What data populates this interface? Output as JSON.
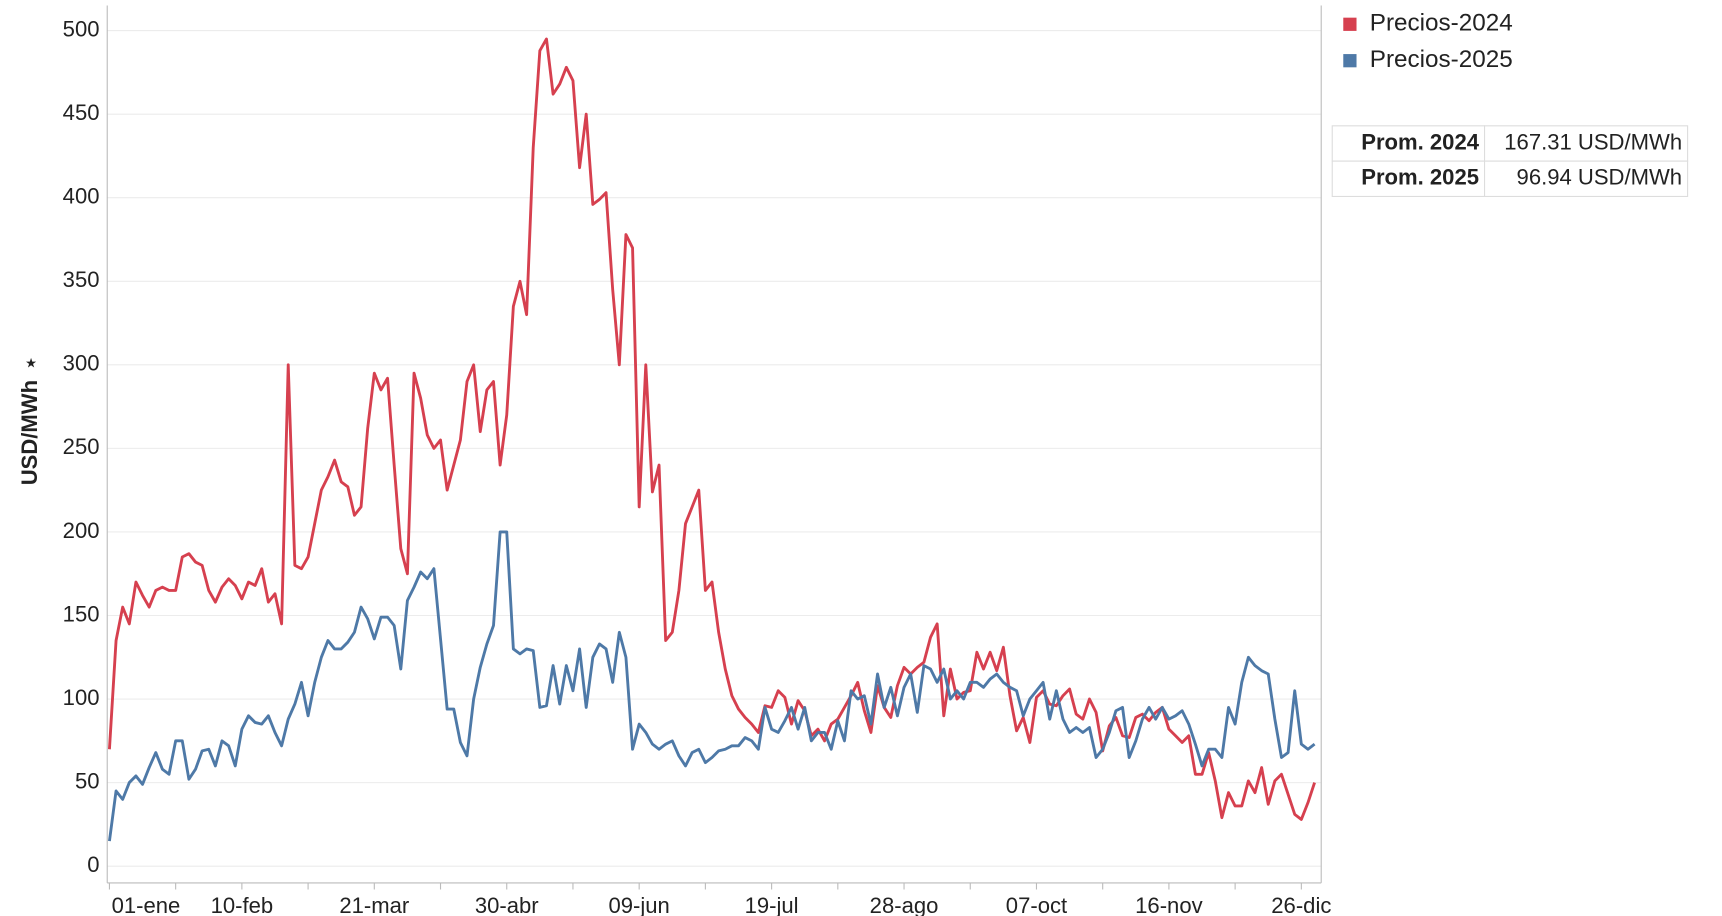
{
  "chart_data": {
    "type": "line",
    "y_label": "USD/MWh",
    "categories": [
      "01-ene",
      null,
      null,
      null,
      null,
      null,
      null,
      null,
      null,
      null,
      null,
      null,
      null,
      null,
      null,
      null,
      null,
      null,
      null,
      null,
      "10-feb",
      null,
      null,
      null,
      null,
      null,
      null,
      null,
      null,
      null,
      null,
      null,
      null,
      null,
      null,
      null,
      null,
      null,
      null,
      null,
      "21-mar",
      null,
      null,
      null,
      null,
      null,
      null,
      null,
      null,
      null,
      null,
      null,
      null,
      null,
      null,
      null,
      null,
      null,
      null,
      null,
      "30-abr",
      null,
      null,
      null,
      null,
      null,
      null,
      null,
      null,
      null,
      null,
      null,
      null,
      null,
      null,
      null,
      null,
      null,
      null,
      null,
      "09-jun",
      null,
      null,
      null,
      null,
      null,
      null,
      null,
      null,
      null,
      null,
      null,
      null,
      null,
      null,
      null,
      null,
      null,
      null,
      null,
      "19-jul",
      null,
      null,
      null,
      null,
      null,
      null,
      null,
      null,
      null,
      null,
      null,
      null,
      null,
      null,
      null,
      null,
      null,
      null,
      null,
      "28-ago",
      null,
      null,
      null,
      null,
      null,
      null,
      null,
      null,
      null,
      null,
      null,
      null,
      null,
      null,
      null,
      null,
      null,
      null,
      null,
      "07-oct",
      null,
      null,
      null,
      null,
      null,
      null,
      null,
      null,
      null,
      null,
      null,
      null,
      null,
      null,
      null,
      null,
      null,
      null,
      null,
      "16-nov",
      null,
      null,
      null,
      null,
      null,
      null,
      null,
      null,
      null,
      null,
      null,
      null,
      null,
      null,
      null,
      null,
      null,
      null,
      null,
      "26-dic",
      null,
      null
    ],
    "series": [
      {
        "name": "Precios-2024",
        "color": "#d6404f",
        "values": [
          70,
          135,
          155,
          145,
          170,
          162,
          155,
          165,
          167,
          165,
          165,
          185,
          187,
          182,
          180,
          165,
          158,
          167,
          172,
          168,
          160,
          170,
          168,
          178,
          158,
          163,
          145,
          300,
          180,
          178,
          185,
          205,
          225,
          233,
          243,
          230,
          227,
          210,
          215,
          262,
          295,
          285,
          292,
          240,
          190,
          175,
          295,
          280,
          258,
          250,
          255,
          225,
          240,
          255,
          290,
          300,
          260,
          285,
          290,
          240,
          270,
          335,
          350,
          330,
          430,
          488,
          495,
          462,
          468,
          478,
          470,
          418,
          450,
          396,
          399,
          403,
          345,
          300,
          378,
          370,
          215,
          300,
          224,
          240,
          135,
          140,
          165,
          205,
          215,
          225,
          165,
          170,
          140,
          118,
          102,
          94,
          89,
          85,
          80,
          96,
          95,
          105,
          101,
          85,
          99,
          93,
          78,
          82,
          75,
          85,
          88,
          95,
          102,
          110,
          93,
          80,
          108,
          95,
          89,
          108,
          119,
          115,
          119,
          122,
          137,
          145,
          90,
          118,
          100,
          104,
          105,
          128,
          118,
          128,
          117,
          131,
          102,
          81,
          89,
          74,
          101,
          105,
          97,
          96,
          102,
          106,
          91,
          88,
          100,
          92,
          69,
          84,
          89,
          78,
          77,
          89,
          91,
          87,
          92,
          95,
          82,
          78,
          74,
          78,
          55,
          55,
          68,
          51,
          29,
          44,
          36,
          36,
          51,
          44,
          59,
          37,
          51,
          55,
          43,
          31,
          28,
          38,
          50
        ]
      },
      {
        "name": "Precios-2025",
        "color": "#4e79a7",
        "values": [
          15,
          45,
          40,
          50,
          54,
          49,
          59,
          68,
          58,
          55,
          75,
          75,
          52,
          58,
          69,
          70,
          60,
          75,
          72,
          60,
          82,
          90,
          86,
          85,
          90,
          80,
          72,
          88,
          97,
          110,
          90,
          110,
          125,
          135,
          130,
          130,
          134,
          140,
          155,
          148,
          136,
          149,
          149,
          144,
          118,
          159,
          167,
          176,
          172,
          178,
          136,
          94,
          94,
          74,
          66,
          100,
          119,
          133,
          144,
          200,
          200,
          130,
          127,
          130,
          129,
          95,
          96,
          120,
          97,
          120,
          105,
          130,
          95,
          125,
          133,
          130,
          110,
          140,
          125,
          70,
          85,
          80,
          73,
          70,
          73,
          75,
          66,
          60,
          68,
          70,
          62,
          65,
          69,
          70,
          72,
          72,
          77,
          75,
          70,
          95,
          82,
          80,
          87,
          95,
          82,
          95,
          75,
          80,
          80,
          70,
          87,
          75,
          105,
          100,
          102,
          85,
          115,
          95,
          107,
          90,
          107,
          115,
          92,
          120,
          118,
          110,
          118,
          100,
          105,
          100,
          110,
          110,
          107,
          112,
          115,
          110,
          107,
          105,
          90,
          100,
          105,
          110,
          88,
          105,
          88,
          80,
          83,
          80,
          83,
          65,
          70,
          80,
          93,
          95,
          65,
          75,
          88,
          95,
          88,
          95,
          88,
          90,
          93,
          85,
          73,
          60,
          70,
          70,
          65,
          95,
          85,
          110,
          125,
          120,
          117,
          115,
          88,
          65,
          68,
          105,
          73,
          70,
          73
        ]
      }
    ],
    "ylim": [
      -10,
      515
    ],
    "yticks": [
      0,
      50,
      100,
      150,
      200,
      250,
      300,
      350,
      400,
      450,
      500
    ],
    "grid": true,
    "legend": "right",
    "summary": [
      [
        "Prom. 2024",
        "167.31 USD/MWh"
      ],
      [
        "Prom. 2025",
        "96.94 USD/MWh"
      ]
    ]
  }
}
